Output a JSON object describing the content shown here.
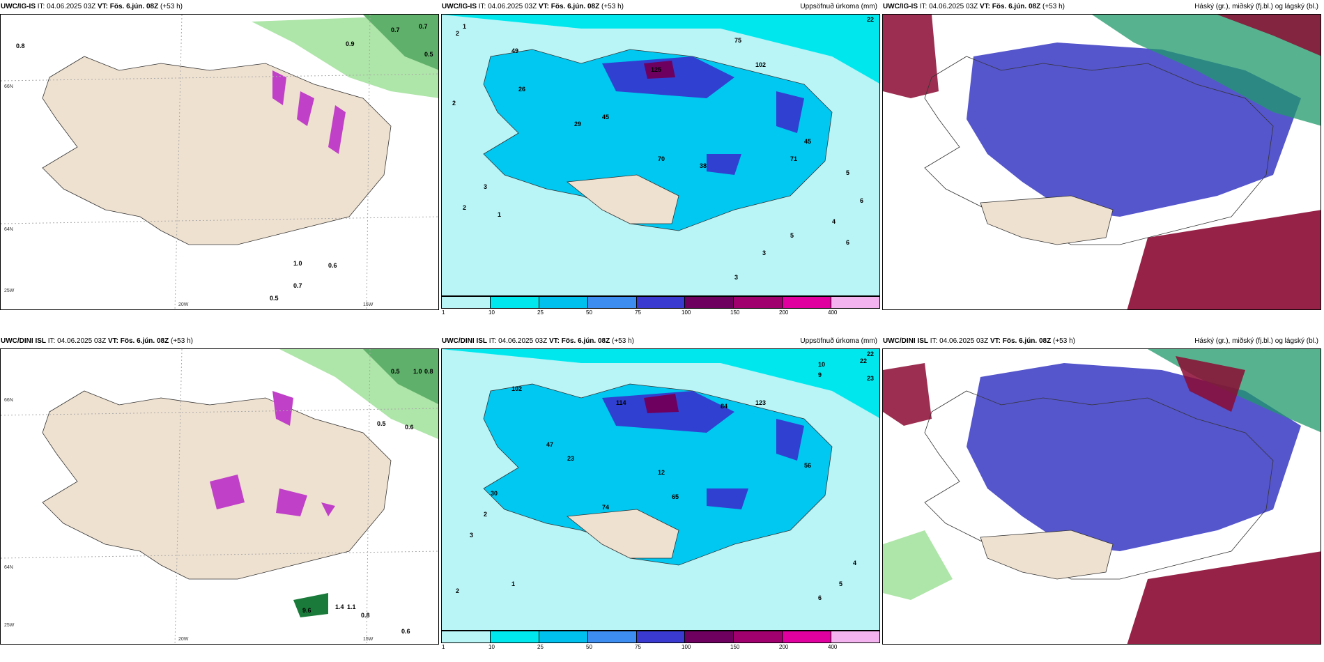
{
  "top_row": {
    "p1": {
      "model": "UWC/IG-IS",
      "it": "IT: 04.06.2025 03Z",
      "vt": "VT: Fös. 6.jún. 08Z",
      "lead": "(+53 h)",
      "subtitle": "",
      "labels": [
        "0.8",
        "0.9",
        "0.7",
        "0.7",
        "0.5",
        "1.0",
        "0.7",
        "0.5",
        "0.6"
      ],
      "lat_lon": [
        "66N",
        "64N",
        "20W",
        "15W",
        "25W"
      ]
    },
    "p2": {
      "model": "UWC/IG-IS",
      "it": "IT: 04.06.2025 03Z",
      "vt": "VT: Fös. 6.jún. 08Z",
      "lead": "(+53 h)",
      "subtitle": "Uppsöfnuð úrkoma (mm)",
      "values": [
        "22",
        "2",
        "1",
        "2",
        "3",
        "2",
        "1",
        "5",
        "6",
        "4",
        "3",
        "3",
        "5",
        "6",
        "49",
        "125",
        "102",
        "75",
        "45",
        "29",
        "26",
        "38",
        "45",
        "71",
        "70"
      ]
    },
    "p3": {
      "model": "UWC/IG-IS",
      "it": "IT: 04.06.2025 03Z",
      "vt": "VT: Fös. 6.jún. 08Z",
      "lead": "(+53 h)",
      "subtitle": "Háský (gr.), miðský (fj.bl.) og lágský (bl.)"
    }
  },
  "bottom_row": {
    "p1": {
      "model": "UWC/DINI ISL",
      "it": "IT: 04.06.2025 03Z",
      "vt": "VT: Fös. 6.jún. 08Z",
      "lead": "(+53 h)",
      "subtitle": "",
      "labels": [
        "0.5",
        "1.0",
        "0.8",
        "0.6",
        "0.5",
        "9.6",
        "1.4",
        "1.1",
        "0.8",
        "0.6"
      ],
      "lat_lon": [
        "66N",
        "64N",
        "20W",
        "15W",
        "25W"
      ]
    },
    "p2": {
      "model": "UWC/DINI ISL",
      "it": "IT: 04.06.2025 03Z",
      "vt": "VT: Fös. 6.jún. 08Z",
      "lead": "(+53 h)",
      "subtitle": "Uppsöfnuð úrkoma (mm)",
      "values": [
        "22",
        "10",
        "9",
        "23",
        "22",
        "2",
        "3",
        "4",
        "5",
        "6",
        "102",
        "114",
        "123",
        "84",
        "56",
        "30",
        "23",
        "74",
        "65",
        "47",
        "12",
        "2",
        "1"
      ]
    },
    "p3": {
      "model": "UWC/DINI ISL",
      "it": "IT: 04.06.2025 03Z",
      "vt": "VT: Fös. 6.jún. 08Z",
      "lead": "(+53 h)",
      "subtitle": "Háský (gr.), miðský (fj.bl.) og lágský (bl.)"
    }
  },
  "colorbar": {
    "ticks": [
      "1",
      "10",
      "25",
      "50",
      "75",
      "100",
      "150",
      "200",
      "400"
    ],
    "colors": [
      "#b9f4f7",
      "#00e8ee",
      "#00c0ee",
      "#3d8df0",
      "#3a3ad0",
      "#6e0060",
      "#a0006e",
      "#e000a0",
      "#f3b3ee"
    ]
  },
  "colors": {
    "land": "#efe1d0",
    "precip_light": "#b9f4f7",
    "precip_mid": "#00c8f0",
    "precip_heavy": "#3040d0",
    "cloud_high": "#8b0a33",
    "cloud_mid": "#5555cc",
    "cloud_low": "#1f9a6a",
    "green": "#aee5a8",
    "purple": "#c040c8"
  }
}
